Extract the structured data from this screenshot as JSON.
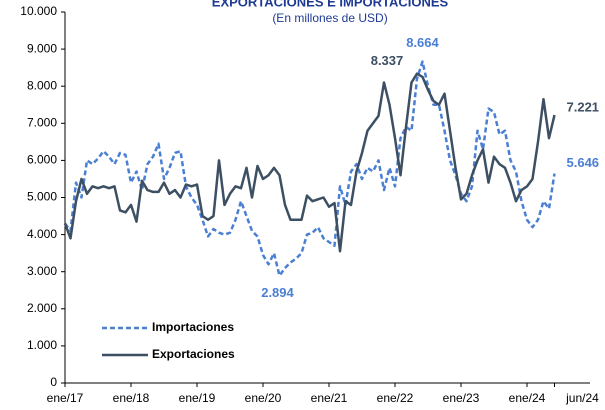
{
  "chart_data": {
    "type": "line",
    "title": "EXPORTACIONES E IMPORTACIONES",
    "subtitle": "(En millones de USD)",
    "categories": [
      "ene/17",
      null,
      null,
      null,
      null,
      null,
      null,
      null,
      null,
      null,
      null,
      null,
      "ene/18",
      null,
      null,
      null,
      null,
      null,
      null,
      null,
      null,
      null,
      null,
      null,
      "ene/19",
      null,
      null,
      null,
      null,
      null,
      null,
      null,
      null,
      null,
      null,
      null,
      "ene/20",
      null,
      null,
      null,
      null,
      null,
      null,
      null,
      null,
      null,
      null,
      null,
      "ene/21",
      null,
      null,
      null,
      null,
      null,
      null,
      null,
      null,
      null,
      null,
      null,
      "ene/22",
      null,
      null,
      null,
      null,
      null,
      null,
      null,
      null,
      null,
      null,
      null,
      "ene/23",
      null,
      null,
      null,
      null,
      null,
      null,
      null,
      null,
      null,
      null,
      null,
      "ene/24",
      null,
      null,
      null,
      null,
      "jun/24"
    ],
    "series": [
      {
        "name": "Importaciones",
        "color": "#4a7fd4",
        "dashed": true,
        "values": [
          4300,
          4100,
          5400,
          5000,
          6000,
          5900,
          6050,
          6250,
          6100,
          5900,
          6200,
          6150,
          5400,
          5700,
          5200,
          5900,
          6100,
          6450,
          5500,
          5800,
          6200,
          6250,
          5300,
          5000,
          4800,
          4400,
          3950,
          4150,
          4050,
          4000,
          4050,
          4400,
          4900,
          4500,
          4100,
          3950,
          3450,
          3200,
          3500,
          2894,
          3100,
          3250,
          3350,
          3500,
          4000,
          4050,
          4200,
          3900,
          3800,
          3700,
          5300,
          4800,
          5700,
          5900,
          5500,
          5800,
          5700,
          6000,
          5200,
          5800,
          5300,
          6600,
          6900,
          6800,
          8200,
          8664,
          8000,
          7500,
          7500,
          6800,
          6000,
          5600,
          5100,
          4900,
          5300,
          6800,
          6300,
          7400,
          7300,
          6700,
          6800,
          6000,
          5700,
          4900,
          4400,
          4200,
          4400,
          4900,
          4700,
          5646
        ]
      },
      {
        "name": "Exportaciones",
        "color": "#3d4f63",
        "dashed": false,
        "values": [
          4300,
          3900,
          4900,
          5500,
          5100,
          5300,
          5250,
          5300,
          5250,
          5300,
          4650,
          4600,
          4800,
          4350,
          5450,
          5200,
          5150,
          5150,
          5400,
          5100,
          5200,
          5000,
          5350,
          5300,
          5350,
          4500,
          4400,
          4500,
          6000,
          4800,
          5100,
          5300,
          5250,
          5800,
          5000,
          5850,
          5500,
          5600,
          5800,
          5600,
          4800,
          4400,
          4400,
          4400,
          5050,
          4900,
          4950,
          5000,
          4750,
          4850,
          3550,
          4900,
          4800,
          5700,
          6200,
          6800,
          7000,
          7200,
          8100,
          7500,
          6600,
          5600,
          6900,
          8100,
          8337,
          8250,
          7900,
          7600,
          7500,
          7800,
          6800,
          5800,
          4950,
          5100,
          5600,
          6000,
          6300,
          5400,
          6100,
          5900,
          5800,
          5400,
          4900,
          5200,
          5300,
          5500,
          6500,
          7650,
          6600,
          7221
        ]
      }
    ],
    "annotations": [
      {
        "text": "8.664",
        "series": 0,
        "index": 65
      },
      {
        "text": "8.337",
        "series": 1,
        "index": 64
      },
      {
        "text": "2.894",
        "series": 0,
        "index": 39
      },
      {
        "text": "7.221",
        "series": 1,
        "index": 89
      },
      {
        "text": "5.646",
        "series": 0,
        "index": 89
      }
    ],
    "ylim": [
      0,
      10000
    ],
    "yticks": [
      0,
      {
        "value": 1000,
        "label": "1.000"
      },
      {
        "value": 2000,
        "label": "2.000"
      },
      {
        "value": 3000,
        "label": "3.000"
      },
      {
        "value": 4000,
        "label": "4.000"
      },
      {
        "value": 5000,
        "label": "5.000"
      },
      {
        "value": 6000,
        "label": "6.000"
      },
      {
        "value": 7000,
        "label": "7.000"
      },
      {
        "value": 8000,
        "label": "8.000"
      },
      {
        "value": 9000,
        "label": "9.000"
      },
      {
        "value": 10000,
        "label": "10.000"
      }
    ]
  }
}
